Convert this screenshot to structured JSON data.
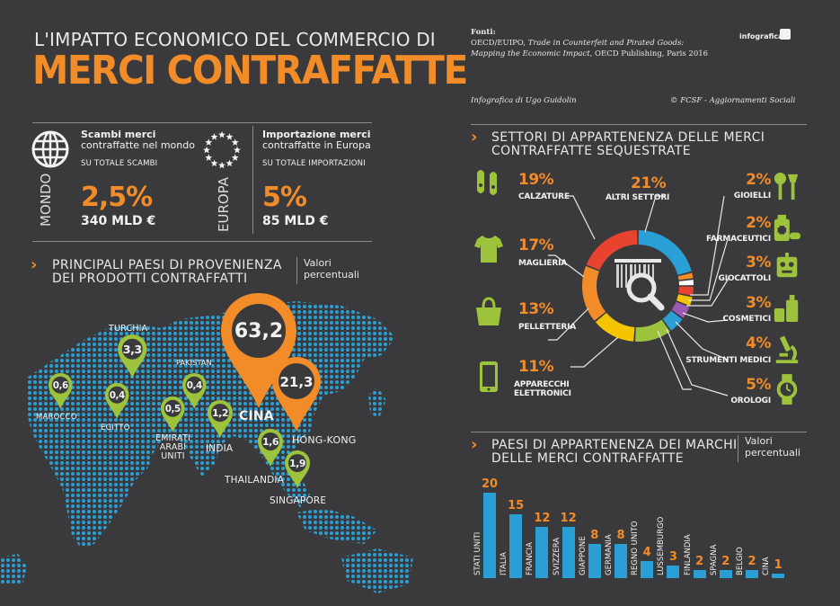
{
  "header": {
    "title_line1": "L'IMPATTO ECONOMICO DEL COMMERCIO DI",
    "title_line2": "MERCI CONTRAFFATTE"
  },
  "sources": {
    "label": "Fonti:",
    "line1_plain": "OECD/EUIPO, ",
    "line1_italic": "Trade in Counterfeit and Pirated Goods:",
    "line2_italic": "Mapping the Economic Impact",
    "line2_plain": ", OECD Publishing, Paris 2016",
    "credit": "Infografica di Ugo Guidolin",
    "copyright": "© FCSF - Aggiornamenti Sociali",
    "logo": "infografica"
  },
  "stats": {
    "world": {
      "side_label": "MONDO",
      "title": "Scambi merci",
      "subtitle": "contraffatte nel mondo",
      "note": "SU TOTALE SCAMBI",
      "pct": "2,5%",
      "amount": "340 MLD €",
      "icon": "globe-icon"
    },
    "europe": {
      "side_label": "EUROPA",
      "title": "Importazione merci",
      "subtitle": "contraffatte in Europa",
      "note": "SU TOTALE IMPORTAZIONI",
      "pct": "5%",
      "amount": "85 MLD €",
      "icon": "eu-stars-icon"
    }
  },
  "map_section": {
    "title_line1": "PRINCIPALI PAESI DI PROVENIENZA",
    "title_line2": "DEI PRODOTTI CONTRAFFATTI",
    "unit_line1": "Valori",
    "unit_line2": "percentuali"
  },
  "sectors_section": {
    "title_line1": "SETTORI DI APPARTENENZA DELLE MERCI",
    "title_line2": "CONTRAFFATTE SEQUESTRATE"
  },
  "brands_section": {
    "title_line1": "PAESI DI APPARTENENZA DEI MARCHI",
    "title_line2": "DELLE MERCI CONTRAFFATTE",
    "unit_line1": "Valori",
    "unit_line2": "percentuali"
  },
  "colors": {
    "background": "#3a3a3c",
    "accent_orange": "#f28c28",
    "pin_green": "#9dc23b",
    "map_blue": "#2a9fd6",
    "bar_blue": "#2a9fd6"
  },
  "chart_data": [
    {
      "type": "map-pins",
      "points": [
        {
          "country": "CINA",
          "value": "63,2",
          "label": "CINA"
        },
        {
          "country": "HONG-KONG",
          "value": "21,3",
          "label": "HONG-KONG"
        },
        {
          "country": "TURCHIA",
          "value": "3,3",
          "label": "TURCHIA"
        },
        {
          "country": "INDIA",
          "value": "1,2",
          "label": "INDIA"
        },
        {
          "country": "SINGAPORE",
          "value": "1,9",
          "label": "SINGAPORE"
        },
        {
          "country": "THAILANDIA",
          "value": "1,6",
          "label": "THAILANDIA"
        },
        {
          "country": "MAROCCO",
          "value": "0,6",
          "label": "MAROCCO"
        },
        {
          "country": "EMIRATI ARABI UNITI",
          "value": "0,5",
          "label_lines": [
            "EMIRATI",
            "ARABI",
            "UNITI"
          ]
        },
        {
          "country": "EGITTO",
          "value": "0,4",
          "label": "EGITTO"
        },
        {
          "country": "PAKISTAN",
          "value": "0,4",
          "label": "PAKISTAN"
        }
      ]
    },
    {
      "type": "pie",
      "title": "SETTORI DI APPARTENENZA DELLE MERCI CONTRAFFATTE SEQUESTRATE",
      "slices": [
        {
          "label": "CALZATURE",
          "value": 19,
          "pct": "19%",
          "color": "#e8432f",
          "icon": "shoes-icon"
        },
        {
          "label": "ALTRI SETTORI",
          "value": 21,
          "pct": "21%",
          "color": "#2a9fd6",
          "icon": ""
        },
        {
          "label": "MAGLIERIA",
          "value": 17,
          "pct": "17%",
          "color": "#f28c28",
          "icon": "tshirt-icon"
        },
        {
          "label": "PELLETTERIA",
          "value": 13,
          "pct": "13%",
          "color": "#f5c400",
          "icon": "handbag-icon"
        },
        {
          "label": "APPARECCHI ELETTRONICI",
          "value": 11,
          "pct": "11%",
          "color": "#9dc23b",
          "icon": "smartphone-icon"
        },
        {
          "label": "GIOIELLI",
          "value": 2,
          "pct": "2%",
          "color": "#ffffff",
          "icon": "jewels-icon"
        },
        {
          "label": "FARMACEUTICI",
          "value": 2,
          "pct": "2%",
          "color": "#f28c28",
          "icon": "pharma-icon"
        },
        {
          "label": "GIOCATTOLI",
          "value": 3,
          "pct": "3%",
          "color": "#e8432f",
          "icon": "toy-robot-icon"
        },
        {
          "label": "COSMETICI",
          "value": 3,
          "pct": "3%",
          "color": "#f5c400",
          "icon": "cosmetics-icon"
        },
        {
          "label": "STRUMENTI MEDICI",
          "value": 4,
          "pct": "4%",
          "color": "#9b59b6",
          "icon": "microscope-icon"
        },
        {
          "label": "OROLOGI",
          "value": 5,
          "pct": "5%",
          "color": "#2a9fd6",
          "icon": "watch-icon"
        }
      ]
    },
    {
      "type": "bar",
      "categories": [
        "STATI UNITI",
        "ITALIA",
        "FRANCIA",
        "SVIZZERA",
        "GIAPPONE",
        "GERMANIA",
        "REGNO UNITO",
        "LUSSEMBURGO",
        "FINLANDIA",
        "SPAGNA",
        "BELGIO",
        "CINA"
      ],
      "values": [
        20,
        15,
        12,
        12,
        8,
        8,
        4,
        3,
        2,
        2,
        2,
        1
      ],
      "ylim": [
        0,
        20
      ]
    }
  ]
}
